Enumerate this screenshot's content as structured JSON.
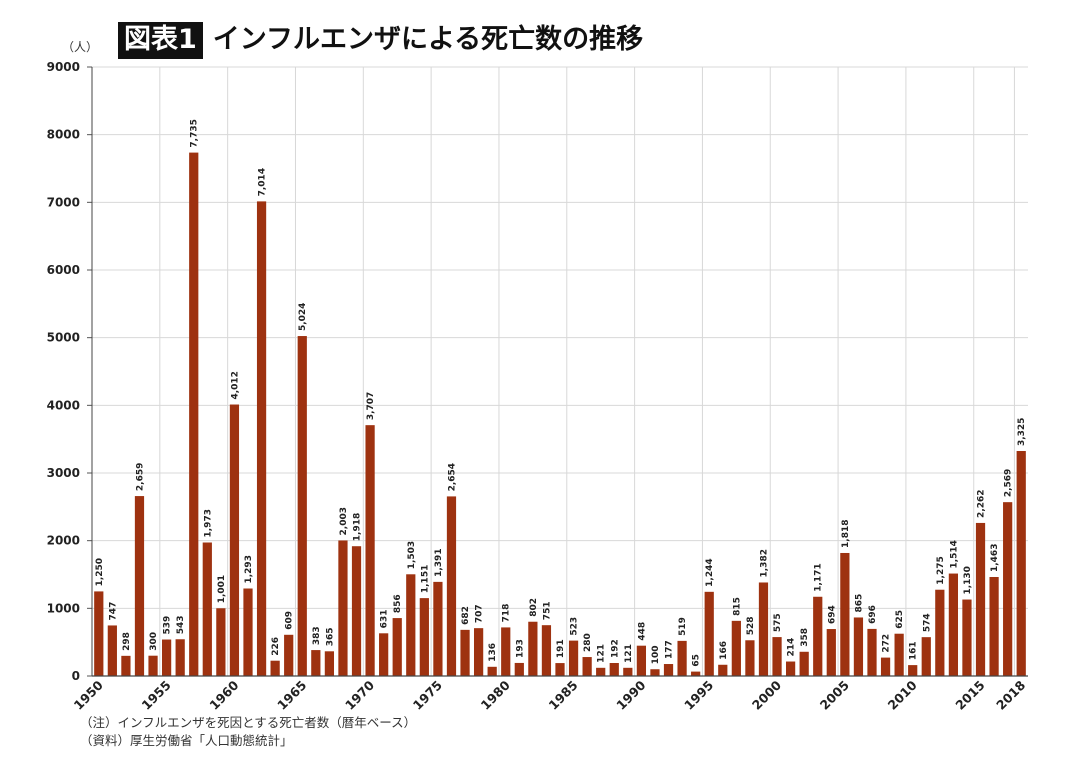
{
  "header": {
    "badge": "図表1",
    "title": "インフルエンザによる死亡数の推移"
  },
  "notes": {
    "line1": "（注）インフルエンザを死因とする死亡者数（暦年ベース）",
    "line2": "（資料）厚生労働省「人口動態統計」"
  },
  "chart_data": {
    "type": "bar",
    "title": "インフルエンザによる死亡数の推移",
    "ylabel": "（人）",
    "xlabel": "",
    "ylim": [
      0,
      9000
    ],
    "yticks": [
      "0",
      "1000",
      "2000",
      "3000",
      "4000",
      "5000",
      "6000",
      "7000",
      "8000",
      "9000"
    ],
    "xticks": [
      "1950",
      "1955",
      "1960",
      "1965",
      "1970",
      "1975",
      "1980",
      "1985",
      "1990",
      "1995",
      "2000",
      "2005",
      "2010",
      "2015",
      "2018"
    ],
    "bar_color": "#9e3210",
    "grid": true,
    "categories": [
      1950,
      1951,
      1952,
      1953,
      1954,
      1955,
      1956,
      1957,
      1958,
      1959,
      1960,
      1961,
      1962,
      1963,
      1964,
      1965,
      1966,
      1967,
      1968,
      1969,
      1970,
      1971,
      1972,
      1973,
      1974,
      1975,
      1976,
      1977,
      1978,
      1979,
      1980,
      1981,
      1982,
      1983,
      1984,
      1985,
      1986,
      1987,
      1988,
      1989,
      1990,
      1991,
      1992,
      1993,
      1994,
      1995,
      1996,
      1997,
      1998,
      1999,
      2000,
      2001,
      2002,
      2003,
      2004,
      2005,
      2006,
      2007,
      2008,
      2009,
      2010,
      2011,
      2012,
      2013,
      2014,
      2015,
      2016,
      2017,
      2018
    ],
    "values": [
      1250,
      747,
      298,
      2659,
      300,
      539,
      543,
      7735,
      1973,
      1001,
      4012,
      1293,
      7014,
      226,
      609,
      5024,
      383,
      365,
      2003,
      1918,
      3707,
      631,
      856,
      1503,
      1151,
      1391,
      2654,
      682,
      707,
      136,
      718,
      193,
      802,
      751,
      191,
      523,
      280,
      121,
      192,
      121,
      448,
      100,
      177,
      519,
      65,
      1244,
      166,
      815,
      528,
      1382,
      575,
      214,
      358,
      1171,
      694,
      1818,
      865,
      696,
      272,
      625,
      161,
      574,
      1275,
      1514,
      1130,
      2262,
      1463,
      2569,
      3325
    ],
    "labels": [
      "1,250",
      "747",
      "298",
      "2,659",
      "300",
      "539",
      "543",
      "7,735",
      "1,973",
      "1,001",
      "4,012",
      "1,293",
      "7,014",
      "226",
      "609",
      "5,024",
      "383",
      "365",
      "2,003",
      "1,918",
      "3,707",
      "631",
      "856",
      "1,503",
      "1,151",
      "1,391",
      "2,654",
      "682",
      "707",
      "136",
      "718",
      "193",
      "802",
      "751",
      "191",
      "523",
      "280",
      "121",
      "192",
      "121",
      "448",
      "100",
      "177",
      "519",
      "65",
      "1,244",
      "166",
      "815",
      "528",
      "1,382",
      "575",
      "214",
      "358",
      "1,171",
      "694",
      "1,818",
      "865",
      "696",
      "272",
      "625",
      "161",
      "574",
      "1,275",
      "1,514",
      "1,130",
      "2,262",
      "1,463",
      "2,569",
      "3,325"
    ]
  }
}
